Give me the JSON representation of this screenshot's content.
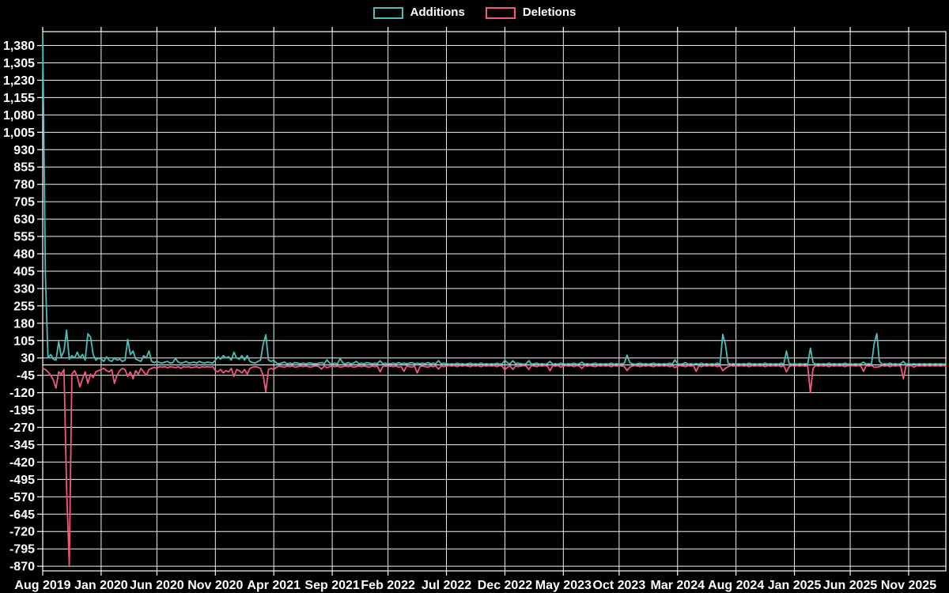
{
  "page": {
    "background": "#000000"
  },
  "legend": {
    "items": [
      {
        "label": "Additions",
        "color": "#4dbdba"
      },
      {
        "label": "Deletions",
        "color": "#f2587d"
      }
    ]
  },
  "chart_data": {
    "type": "line",
    "title": "",
    "xlabel": "",
    "ylabel": "",
    "legend_position": "top",
    "grid": true,
    "background": "#000000",
    "colors": {
      "grid": "#efefef",
      "axis": "#ffffff",
      "zero_line": "#e8e8e8",
      "text": "#ffffff"
    },
    "ylim": [
      -890,
      1440
    ],
    "weeks_total": 341,
    "x_axis": {
      "tick_labels": [
        "Aug 2019",
        "Jan 2020",
        "Jun 2020",
        "Nov 2020",
        "Apr 2021",
        "Sep 2021",
        "Feb 2022",
        "Jul 2022",
        "Dec 2022",
        "May 2023",
        "Oct 2023",
        "Mar 2024",
        "Aug 2024",
        "Jan 2025",
        "Jun 2025",
        "Nov 2025"
      ],
      "tick_weeks": [
        0,
        22,
        43,
        65,
        87,
        109,
        130,
        152,
        174,
        196,
        217,
        239,
        261,
        283,
        304,
        326
      ]
    },
    "y_axis": {
      "tick_values": [
        1380,
        1305,
        1230,
        1155,
        1080,
        1005,
        930,
        855,
        780,
        705,
        630,
        555,
        480,
        405,
        330,
        255,
        180,
        105,
        30,
        -45,
        -120,
        -195,
        -270,
        -345,
        -420,
        -495,
        -570,
        -645,
        -720,
        -795,
        -870
      ],
      "tick_labels": [
        "1,380",
        "1,305",
        "1,230",
        "1,155",
        "1,080",
        "1,005",
        "930",
        "855",
        "780",
        "705",
        "630",
        "555",
        "480",
        "405",
        "330",
        "255",
        "180",
        "105",
        "30",
        "-45",
        "-120",
        "-195",
        "-270",
        "-345",
        "-420",
        "-495",
        "-570",
        "-645",
        "-720",
        "-795",
        "-870"
      ]
    },
    "series": [
      {
        "name": "Additions",
        "color": "#4dbdba",
        "values": [
          1434,
          385,
          30,
          45,
          25,
          20,
          100,
          35,
          60,
          150,
          25,
          40,
          30,
          55,
          30,
          45,
          20,
          135,
          120,
          45,
          20,
          30,
          25,
          15,
          35,
          20,
          15,
          30,
          20,
          25,
          15,
          20,
          110,
          45,
          60,
          25,
          20,
          15,
          40,
          30,
          60,
          15,
          10,
          15,
          10,
          8,
          12,
          15,
          8,
          10,
          28,
          12,
          8,
          10,
          15,
          8,
          10,
          12,
          8,
          15,
          10,
          8,
          12,
          10,
          8,
          20,
          35,
          25,
          40,
          30,
          35,
          20,
          55,
          30,
          25,
          40,
          20,
          40,
          15,
          10,
          8,
          15,
          20,
          90,
          130,
          20,
          15,
          20,
          8,
          5,
          8,
          12,
          5,
          8,
          5,
          10,
          8,
          5,
          8,
          5,
          8,
          8,
          5,
          5,
          8,
          10,
          5,
          22,
          8,
          5,
          8,
          5,
          28,
          8,
          5,
          10,
          5,
          8,
          15,
          5,
          8,
          5,
          10,
          8,
          5,
          8,
          5,
          18,
          5,
          8,
          5,
          5,
          8,
          5,
          10,
          5,
          8,
          5,
          8,
          10,
          5,
          8,
          5,
          8,
          5,
          10,
          5,
          8,
          5,
          18,
          5,
          8,
          5,
          3,
          5,
          3,
          8,
          3,
          5,
          3,
          5,
          8,
          3,
          5,
          3,
          8,
          3,
          5,
          3,
          5,
          3,
          8,
          3,
          5,
          20,
          8,
          5,
          18,
          5,
          8,
          5,
          3,
          5,
          18,
          3,
          5,
          8,
          3,
          5,
          3,
          5,
          15,
          3,
          5,
          3,
          8,
          5,
          3,
          5,
          3,
          8,
          3,
          5,
          12,
          3,
          5,
          3,
          5,
          8,
          3,
          5,
          3,
          5,
          3,
          8,
          3,
          5,
          3,
          5,
          8,
          42,
          10,
          5,
          3,
          5,
          8,
          3,
          5,
          3,
          5,
          8,
          3,
          5,
          3,
          5,
          3,
          8,
          3,
          22,
          5,
          3,
          5,
          10,
          3,
          5,
          3,
          5,
          3,
          8,
          3,
          5,
          3,
          5,
          3,
          8,
          3,
          132,
          90,
          8,
          3,
          5,
          3,
          5,
          3,
          5,
          3,
          8,
          3,
          5,
          3,
          5,
          3,
          8,
          3,
          5,
          3,
          5,
          3,
          8,
          3,
          60,
          8,
          3,
          5,
          3,
          5,
          3,
          5,
          3,
          72,
          10,
          3,
          5,
          3,
          5,
          3,
          8,
          3,
          5,
          3,
          5,
          3,
          8,
          3,
          5,
          3,
          5,
          3,
          5,
          12,
          3,
          5,
          3,
          90,
          135,
          15,
          3,
          5,
          3,
          8,
          3,
          5,
          3,
          5,
          15,
          3,
          5,
          3,
          5,
          3,
          5,
          3,
          5,
          3,
          5,
          3,
          5,
          3,
          5,
          3,
          5
        ]
      },
      {
        "name": "Deletions",
        "color": "#f2587d",
        "values": [
          -15,
          -20,
          -30,
          -45,
          -65,
          -100,
          -30,
          -40,
          -20,
          -530,
          -865,
          -40,
          -25,
          -50,
          -95,
          -60,
          -30,
          -80,
          -40,
          -55,
          -30,
          -25,
          -20,
          -15,
          -25,
          -30,
          -20,
          -80,
          -45,
          -25,
          -15,
          -20,
          -50,
          -30,
          -60,
          -25,
          -40,
          -15,
          -30,
          -45,
          -20,
          -15,
          -10,
          -15,
          -8,
          -10,
          -8,
          -12,
          -8,
          -10,
          -12,
          -8,
          -15,
          -8,
          -10,
          -8,
          -12,
          -10,
          -8,
          -12,
          -8,
          -10,
          -8,
          -10,
          -8,
          -25,
          -30,
          -20,
          -35,
          -25,
          -30,
          -15,
          -50,
          -20,
          -25,
          -35,
          -20,
          -40,
          -15,
          -10,
          -8,
          -10,
          -15,
          -45,
          -115,
          -20,
          -15,
          -20,
          -10,
          -6,
          -8,
          -10,
          -5,
          -8,
          -5,
          -10,
          -8,
          -5,
          -8,
          -5,
          -8,
          -10,
          -5,
          -5,
          -8,
          -18,
          -5,
          -12,
          -8,
          -5,
          -8,
          -5,
          -10,
          -8,
          -5,
          -8,
          -5,
          -10,
          -8,
          -5,
          -8,
          -5,
          -8,
          -10,
          -5,
          -8,
          -5,
          -30,
          -8,
          -5,
          -8,
          -5,
          -8,
          -5,
          -10,
          -8,
          -28,
          -5,
          -8,
          -10,
          -5,
          -35,
          -8,
          -5,
          -8,
          -10,
          -5,
          -8,
          -5,
          -18,
          -5,
          -8,
          -5,
          -3,
          -5,
          -3,
          -8,
          -3,
          -5,
          -3,
          -5,
          -8,
          -3,
          -5,
          -3,
          -8,
          -3,
          -5,
          -3,
          -5,
          -3,
          -8,
          -3,
          -5,
          -22,
          -10,
          -5,
          -20,
          -5,
          -8,
          -5,
          -3,
          -5,
          -20,
          -3,
          -5,
          -8,
          -3,
          -5,
          -3,
          -5,
          -25,
          -3,
          -5,
          -3,
          -10,
          -5,
          -3,
          -5,
          -3,
          -8,
          -3,
          -5,
          -15,
          -3,
          -5,
          -3,
          -5,
          -8,
          -3,
          -5,
          -3,
          -5,
          -3,
          -8,
          -3,
          -5,
          -3,
          -5,
          -8,
          -25,
          -10,
          -5,
          -3,
          -5,
          -8,
          -3,
          -5,
          -3,
          -5,
          -8,
          -3,
          -5,
          -3,
          -5,
          -3,
          -8,
          -3,
          -12,
          -5,
          -3,
          -5,
          -8,
          -3,
          -5,
          -3,
          -28,
          -3,
          -8,
          -3,
          -5,
          -3,
          -5,
          -3,
          -8,
          -3,
          -25,
          -15,
          -8,
          -3,
          -5,
          -3,
          -5,
          -3,
          -5,
          -3,
          -8,
          -3,
          -5,
          -3,
          -5,
          -3,
          -8,
          -3,
          -5,
          -3,
          -5,
          -3,
          -8,
          -3,
          -30,
          -8,
          -3,
          -5,
          -3,
          -5,
          -3,
          -5,
          -3,
          -120,
          -15,
          -3,
          -5,
          -3,
          -5,
          -3,
          -8,
          -3,
          -5,
          -3,
          -5,
          -3,
          -8,
          -3,
          -5,
          -3,
          -5,
          -3,
          -5,
          -28,
          -3,
          -5,
          -3,
          -10,
          -10,
          -8,
          -3,
          -5,
          -3,
          -8,
          -3,
          -5,
          -3,
          -5,
          -60,
          -3,
          -5,
          -3,
          -10,
          -3,
          -5,
          -3,
          -5,
          -3,
          -5,
          -3,
          -5,
          -3,
          -5,
          -3,
          -5
        ]
      }
    ]
  }
}
